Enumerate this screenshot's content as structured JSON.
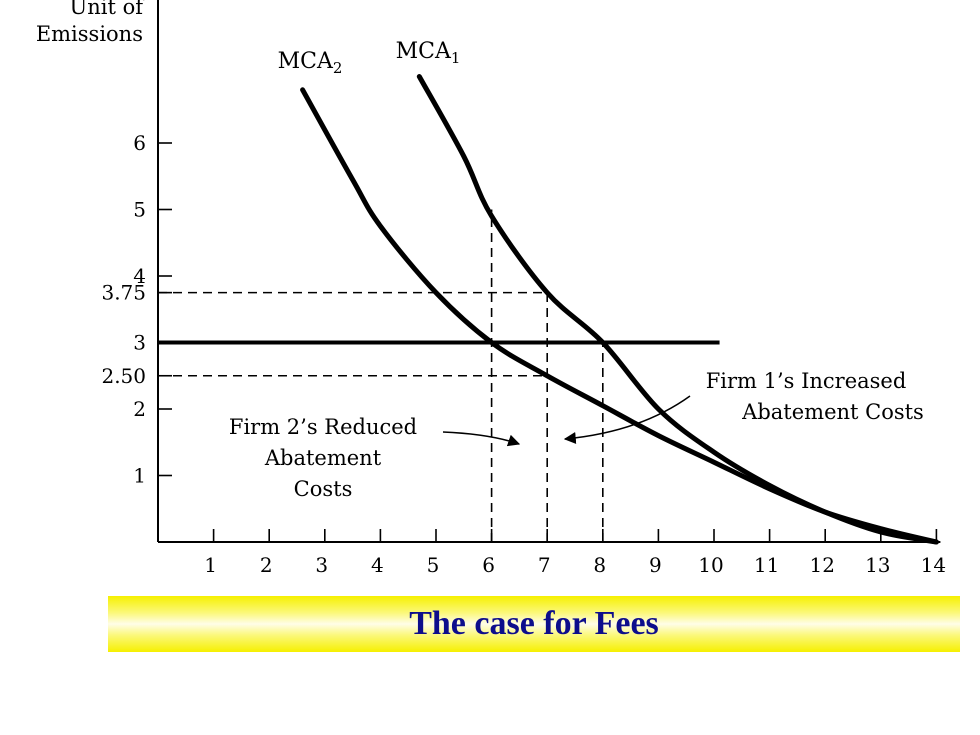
{
  "chart_data": {
    "type": "line",
    "ylabel": [
      "Unit of",
      "Emissions"
    ],
    "xlim": [
      0,
      14
    ],
    "ylim": [
      0,
      7
    ],
    "x_ticks": [
      1,
      2,
      3,
      4,
      5,
      6,
      7,
      8,
      9,
      10,
      11,
      12,
      13,
      14
    ],
    "y_ticks": [
      {
        "value": 1,
        "label": "1"
      },
      {
        "value": 2,
        "label": "2"
      },
      {
        "value": 2.5,
        "label": "2.50"
      },
      {
        "value": 3,
        "label": "3"
      },
      {
        "value": 3.75,
        "label": "3.75"
      },
      {
        "value": 4,
        "label": "4"
      },
      {
        "value": 5,
        "label": "5"
      },
      {
        "value": 6,
        "label": "6"
      }
    ],
    "series": [
      {
        "name": "MCA",
        "subscript": "1",
        "x": [
          4.7,
          5.5,
          6.0,
          7.0,
          8.0,
          9.0,
          10.0,
          11.0,
          12.0,
          13.0,
          14.0
        ],
        "y": [
          7.0,
          5.8,
          4.9,
          3.75,
          3.0,
          2.0,
          1.35,
          0.85,
          0.45,
          0.15,
          0.0
        ]
      },
      {
        "name": "MCA",
        "subscript": "2",
        "x": [
          2.6,
          3.5,
          4.0,
          5.0,
          6.0,
          7.0,
          8.0,
          9.0,
          10.0,
          11.0,
          12.0,
          13.0,
          14.0
        ],
        "y": [
          6.8,
          5.45,
          4.75,
          3.75,
          3.0,
          2.5,
          2.05,
          1.6,
          1.2,
          0.8,
          0.45,
          0.2,
          0.0
        ]
      }
    ],
    "fee_line": {
      "y": 3,
      "x_end": 10.1
    },
    "reference_lines": [
      {
        "type": "h",
        "y": 3.75,
        "x_end": 7
      },
      {
        "type": "h",
        "y": 2.5,
        "x_end": 7
      },
      {
        "type": "v",
        "x": 6,
        "y_end": 5.0
      },
      {
        "type": "v",
        "x": 7,
        "y_end": 3.75
      },
      {
        "type": "v",
        "x": 8,
        "y_end": 3.0
      }
    ],
    "annotations": [
      {
        "id": "firm1",
        "lines": [
          "Firm 1’s Increased",
          "Abatement Costs"
        ]
      },
      {
        "id": "firm2",
        "lines": [
          "Firm 2’s Reduced",
          "Abatement",
          "Costs"
        ]
      }
    ]
  },
  "caption": "The case for Fees"
}
